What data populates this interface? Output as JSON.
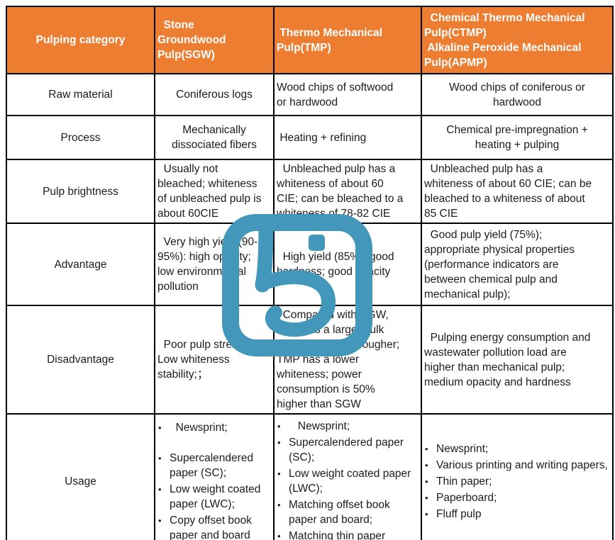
{
  "header": {
    "pulping_category": "Pulping category",
    "sgw": "  Stone\nGroundwood\nPulp(SGW)",
    "tmp": " Thermo Mechanical\nPulp(TMP)",
    "ctmp": "  Chemical Thermo Mechanical\nPulp(CTMP)\n Alkaline Peroxide Mechanical\nPulp(APMP)"
  },
  "rows": {
    "raw_material": {
      "label": "Raw material",
      "sgw": "Coniferous logs",
      "tmp": "Wood chips of softwood\nor hardwood",
      "ctmp": "Wood chips of coniferous or\nhardwood"
    },
    "process": {
      "label": "Process",
      "sgw": "Mechanically\ndissociated fibers",
      "tmp": " Heating + refining",
      "ctmp": "Chemical pre-impregnation +\nheating + pulping"
    },
    "pulp_brightness": {
      "label": "Pulp brightness",
      "sgw": "  Usually not\nbleached; whiteness\nof unbleached pulp is\nabout 60CIE",
      "tmp": "  Unbleached pulp has a\nwhiteness of about 60\nCIE; can be bleached to a\nwhiteness of 78-82 CIE",
      "ctmp": "  Unbleached pulp has a\nwhiteness of about 60 CIE; can be\nbleached to a whiteness of about\n85 CIE"
    },
    "advantage": {
      "label": "Advantage",
      "sgw": "  Very high yield (90-\n95%): high opacity;\nlow environmental\npollution",
      "tmp": "  High yield (85%); good\nhardness; good opacity",
      "ctmp": "  Good pulp yield (75%);\nappropriate physical properties\n(performance indicators are\nbetween chemical pulp and\nmechanical pulp);"
    },
    "disadvantage": {
      "label": "Disadvantage",
      "sgw": "  Poor pulp strength;\nLow whiteness\nstability;；",
      "tmp": "  Compared with SGW,\nTMP has a larger bulk\nand the paper is rougher;\nTMP has a lower\nwhiteness; power\nconsumption is 50%\nhigher than SGW",
      "ctmp": "  Pulping energy consumption and\nwastewater pollution load are\nhigher than mechanical pulp;\nmedium opacity and hardness"
    },
    "usage": {
      "label": "Usage",
      "sgw_items": [
        "  Newsprint;",
        "",
        "Supercalendered paper (SC);",
        "Low weight coated paper (LWC);",
        "Copy offset book paper and board"
      ],
      "tmp_items": [
        "   Newsprint;",
        "Supercalendered paper (SC);",
        "Low weight coated paper (LWC);",
        "Matching offset book paper and board;",
        "Matching thin paper"
      ],
      "ctmp_items": [
        "Newsprint;",
        "Various printing and writing papers,",
        "Thin paper;",
        "Paperboard;",
        "Fluff pulp"
      ]
    }
  },
  "watermark": {
    "icon": "teal-seal-logo"
  },
  "colors": {
    "header_bg": "#ED7D31",
    "header_text": "#FFFFFF",
    "body_text": "#1C1C1C",
    "border": "#000000",
    "watermark": "#4397BA",
    "page_bg": "#FFFFFF"
  }
}
